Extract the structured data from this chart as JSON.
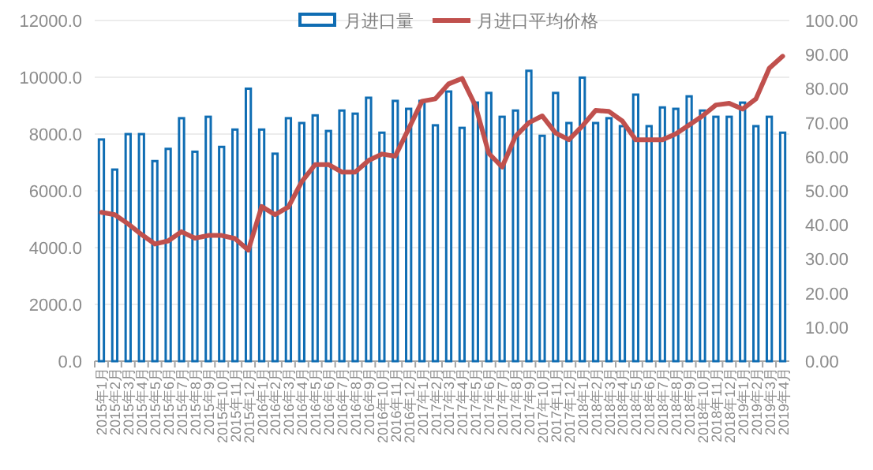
{
  "chart_data": {
    "type": "bar",
    "categories": [
      "2015年1月",
      "2015年2月",
      "2015年3月",
      "2015年4月",
      "2015年5月",
      "2015年6月",
      "2015年7月",
      "2015年8月",
      "2015年9月",
      "2015年10月",
      "2015年11月",
      "2015年12月",
      "2016年1月",
      "2016年2月",
      "2016年3月",
      "2016年4月",
      "2016年5月",
      "2016年6月",
      "2016年7月",
      "2016年8月",
      "2016年9月",
      "2016年10月",
      "2016年11月",
      "2016年12月",
      "2017年1月",
      "2017年2月",
      "2017年3月",
      "2017年4月",
      "2017年5月",
      "2017年6月",
      "2017年7月",
      "2017年8月",
      "2017年9月",
      "2017年10月",
      "2017年11月",
      "2017年12月",
      "2018年1月",
      "2018年2月",
      "2018年3月",
      "2018年4月",
      "2018年5月",
      "2018年6月",
      "2018年7月",
      "2018年8月",
      "2018年9月",
      "2018年10月",
      "2018年11月",
      "2018年12月",
      "2019年1月",
      "2019年2月",
      "2019年3月",
      "2019年4月"
    ],
    "series": [
      {
        "name": "月进口量",
        "color": "#0f6db3",
        "values": [
          7850,
          6790,
          8040,
          8040,
          7090,
          7520,
          8600,
          7420,
          8650,
          7590,
          8200,
          9640,
          8200,
          7350,
          8600,
          8430,
          8700,
          8150,
          8870,
          8760,
          9320,
          8090,
          9210,
          8930,
          9210,
          8350,
          9540,
          8260,
          9150,
          9490,
          8650,
          8870,
          10270,
          7980,
          9490,
          8430,
          10030,
          8430,
          8600,
          8320,
          9430,
          8320,
          8980,
          8930,
          9370,
          8870,
          8650,
          8650,
          9150,
          8320,
          8650,
          8090
        ]
      },
      {
        "name": "月进口平均价格",
        "type": "line",
        "axis": "y2",
        "color": "#c0504d",
        "values": [
          43.7,
          43,
          40.3,
          37.2,
          34.4,
          35.3,
          38,
          36.1,
          36.9,
          36.9,
          36,
          32.6,
          45.4,
          43,
          45.3,
          52.7,
          57.7,
          57.7,
          55.5,
          55.5,
          58.9,
          60.8,
          60.2,
          68.2,
          76.3,
          77,
          81.4,
          83,
          75,
          61,
          57,
          66,
          70,
          72,
          67,
          65,
          69,
          73.6,
          73.3,
          70.5,
          65,
          65,
          65,
          66.7,
          69.3,
          72,
          75.2,
          75.7,
          74,
          77,
          86,
          89.5
        ]
      }
    ],
    "ylim": [
      0,
      12000
    ],
    "yticks": [
      {
        "value": 0,
        "label": "0.0"
      },
      {
        "value": 2000,
        "label": "2000.0"
      },
      {
        "value": 4000,
        "label": "4000.0"
      },
      {
        "value": 6000,
        "label": "6000.0"
      },
      {
        "value": 8000,
        "label": "8000.0"
      },
      {
        "value": 10000,
        "label": "10000.0"
      },
      {
        "value": 12000,
        "label": "12000.0"
      }
    ],
    "y2lim": [
      0,
      100
    ],
    "y2ticks": [
      {
        "value": 0,
        "label": "0.00"
      },
      {
        "value": 10,
        "label": "10.00"
      },
      {
        "value": 20,
        "label": "20.00"
      },
      {
        "value": 30,
        "label": "30.00"
      },
      {
        "value": 40,
        "label": "40.00"
      },
      {
        "value": 50,
        "label": "50.00"
      },
      {
        "value": 60,
        "label": "60.00"
      },
      {
        "value": 70,
        "label": "70.00"
      },
      {
        "value": 80,
        "label": "80.00"
      },
      {
        "value": 90,
        "label": "90.00"
      },
      {
        "value": 100,
        "label": "100.00"
      }
    ],
    "grid": "y",
    "legend": "top"
  }
}
